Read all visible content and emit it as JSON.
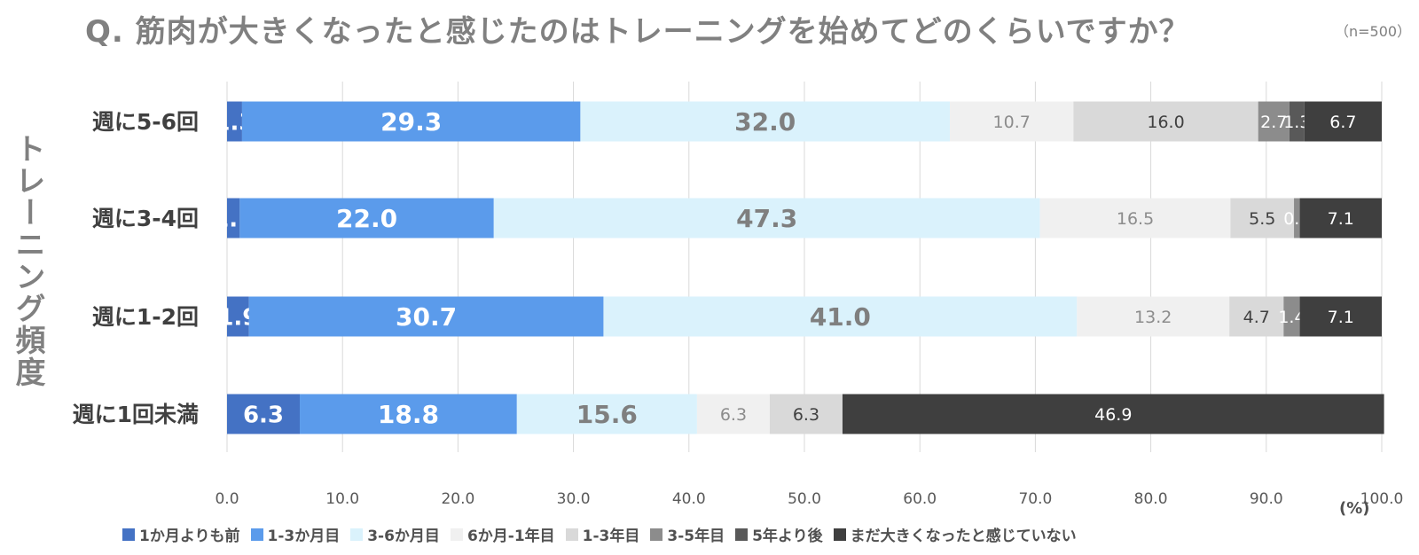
{
  "title": "Q.  筋肉が大きくなったと感じたのはトレーニングを始めてどのくらいですか？",
  "sample_note": "（n=500）",
  "unit_label": "(%)",
  "chart_data": {
    "type": "bar",
    "orientation": "horizontal",
    "stacked": true,
    "ylabel": "トレーニング頻度",
    "xlim": [
      0,
      100
    ],
    "x_ticks": [
      "0.0",
      "10.0",
      "20.0",
      "30.0",
      "40.0",
      "50.0",
      "60.0",
      "70.0",
      "80.0",
      "90.0",
      "100.0"
    ],
    "grid": "vertical",
    "legend_position": "bottom",
    "categories": [
      "週に5-6回",
      "週に3-4回",
      "週に1-2回",
      "週に1回未満"
    ],
    "series": [
      {
        "name": "1か月よりも前",
        "color": "#4472C4",
        "text_color": "#ffffff",
        "values": [
          1.3,
          1.1,
          1.9,
          6.3
        ]
      },
      {
        "name": "1-3か月目",
        "color": "#5B9BEB",
        "text_color": "#ffffff",
        "values": [
          29.3,
          22.0,
          30.7,
          18.8
        ]
      },
      {
        "name": "3-6か月目",
        "color": "#DAF2FC",
        "text_color": "#7F7F7F",
        "values": [
          32.0,
          47.3,
          41.0,
          15.6
        ]
      },
      {
        "name": "6か月-1年目",
        "color": "#F0F0F0",
        "text_color": "#8C8C8C",
        "values": [
          10.7,
          16.5,
          13.2,
          6.3
        ]
      },
      {
        "name": "1-3年目",
        "color": "#D9D9D9",
        "text_color": "#404040",
        "values": [
          16.0,
          5.5,
          4.7,
          6.3
        ]
      },
      {
        "name": "3-5年目",
        "color": "#8C8C8C",
        "text_color": "#ffffff",
        "values": [
          2.7,
          0.5,
          1.4,
          null
        ]
      },
      {
        "name": "5年より後",
        "color": "#595959",
        "text_color": "#ffffff",
        "values": [
          1.3,
          null,
          null,
          null
        ]
      },
      {
        "name": "まだ大きくなったと感じていない",
        "color": "#3F3F3F",
        "text_color": "#ffffff",
        "values": [
          6.7,
          7.1,
          7.1,
          46.9
        ]
      }
    ]
  }
}
